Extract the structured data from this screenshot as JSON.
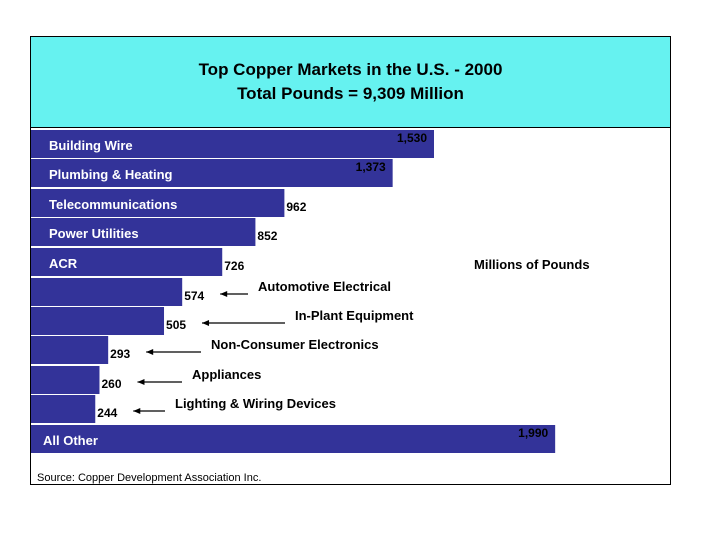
{
  "chart_data": {
    "type": "bar",
    "orientation": "horizontal",
    "title": "Top Copper Markets in the U.S. - 2000",
    "subtitle": "Total Pounds = 9,309 Million",
    "unit_label": "Millions of Pounds",
    "source": "Source: Copper Development Association Inc.",
    "bar_color": "#333399",
    "header_color": "#66f2f0",
    "categories": [
      "Building Wire",
      "Plumbing & Heating",
      "Telecommunications",
      "Power Utilities",
      "ACR",
      "Automotive Electrical",
      "In-Plant Equipment",
      "Non-Consumer Electronics",
      "Appliances",
      "Lighting & Wiring Devices",
      "All Other"
    ],
    "values": [
      1530,
      1373,
      962,
      852,
      726,
      574,
      505,
      293,
      260,
      244,
      1990
    ],
    "value_labels": [
      "1,530",
      "1,373",
      "962",
      "852",
      "726",
      "574",
      "505",
      "293",
      "260",
      "244",
      "1,990"
    ],
    "category_label_placement": [
      "inside",
      "inside",
      "inside",
      "inside",
      "inside",
      "arrow",
      "arrow",
      "arrow",
      "arrow",
      "arrow",
      "inside"
    ],
    "xlim": [
      0,
      2000
    ],
    "grid": false,
    "legend": "none"
  }
}
